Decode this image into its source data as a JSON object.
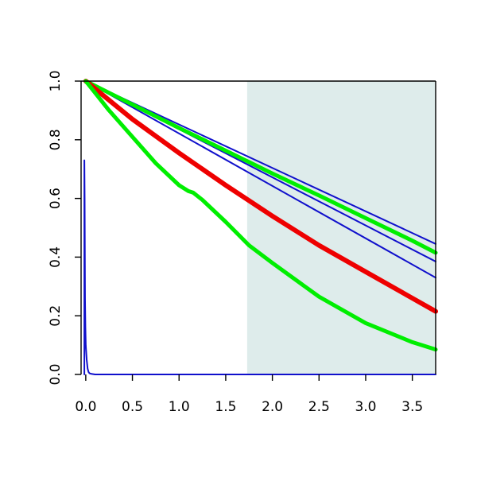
{
  "chart_data": {
    "type": "line",
    "title": "",
    "xlabel": "",
    "ylabel": "",
    "xlim": [
      -0.05,
      3.75
    ],
    "ylim": [
      0.0,
      1.0
    ],
    "xticks": [
      0.0,
      0.5,
      1.0,
      1.5,
      2.0,
      2.5,
      3.0,
      3.5
    ],
    "yticks": [
      0.0,
      0.2,
      0.4,
      0.6,
      0.8,
      1.0
    ],
    "xtick_labels": [
      "0.0",
      "0.5",
      "1.0",
      "1.5",
      "2.0",
      "2.5",
      "3.0",
      "3.5"
    ],
    "ytick_labels": [
      "0.0",
      "0.2",
      "0.4",
      "0.6",
      "0.8",
      "1.0"
    ],
    "grid": false,
    "legend": "none",
    "shaded_region": {
      "x_from": 1.73,
      "x_to": 3.75,
      "color": "#deeceb"
    },
    "series": [
      {
        "color": "#1010cc",
        "width": 2,
        "x": [
          0.0,
          3.75
        ],
        "y": [
          1.0,
          0.445
        ]
      },
      {
        "color": "#1010cc",
        "width": 2,
        "x": [
          0.0,
          3.75
        ],
        "y": [
          1.0,
          0.385
        ]
      },
      {
        "color": "#1010cc",
        "width": 2,
        "x": [
          0.0,
          3.75
        ],
        "y": [
          1.0,
          0.33
        ]
      },
      {
        "color": "#1010cc",
        "width": 2,
        "x": [
          -0.015,
          -0.015,
          -0.012,
          -0.008,
          -0.004,
          0.0,
          0.01,
          0.02,
          0.03,
          0.04,
          0.06,
          0.1,
          3.75
        ],
        "y": [
          0.0,
          0.73,
          0.6,
          0.26,
          0.16,
          0.1,
          0.05,
          0.02,
          0.008,
          0.004,
          0.002,
          0.0,
          0.0
        ]
      },
      {
        "color": "#00ee00",
        "width": 5,
        "x": [
          0.0,
          0.5,
          1.0,
          1.5,
          2.0,
          2.5,
          3.0,
          3.5,
          3.75
        ],
        "y": [
          1.0,
          0.92,
          0.84,
          0.763,
          0.685,
          0.61,
          0.533,
          0.456,
          0.415
        ]
      },
      {
        "color": "#ee0000",
        "width": 6,
        "x": [
          0.0,
          0.5,
          1.0,
          1.5,
          2.0,
          2.5,
          3.0,
          3.5,
          3.75
        ],
        "y": [
          1.0,
          0.87,
          0.755,
          0.645,
          0.54,
          0.44,
          0.35,
          0.26,
          0.215
        ]
      },
      {
        "color": "#00ee00",
        "width": 5,
        "x": [
          0.0,
          0.25,
          0.5,
          0.75,
          1.0,
          1.1,
          1.15,
          1.25,
          1.5,
          1.75,
          2.0,
          2.5,
          3.0,
          3.5,
          3.75
        ],
        "y": [
          1.0,
          0.9,
          0.81,
          0.72,
          0.645,
          0.625,
          0.62,
          0.595,
          0.52,
          0.44,
          0.38,
          0.265,
          0.175,
          0.11,
          0.085
        ]
      }
    ]
  }
}
